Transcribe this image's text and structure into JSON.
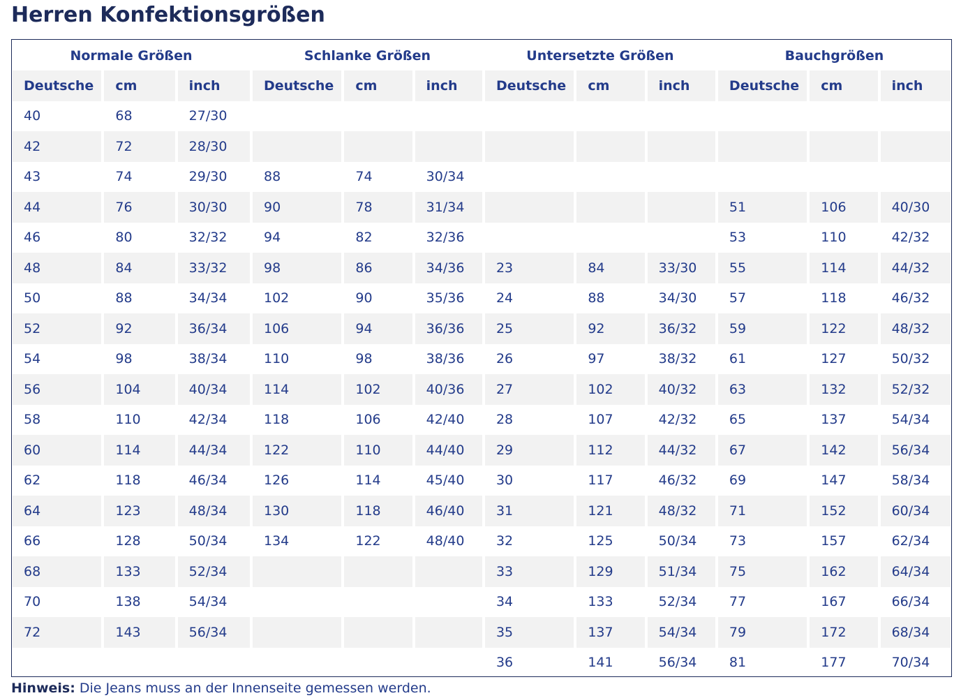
{
  "title": "Herren Konfektionsgrößen",
  "groups": [
    "Normale Größen",
    "Schlanke Größen",
    "Untersetzte Größen",
    "Bauchgrößen"
  ],
  "columns": [
    "Deutsche",
    "cm",
    "inch",
    "Deutsche",
    "cm",
    "inch",
    "Deutsche",
    "cm",
    "inch",
    "Deutsche",
    "cm",
    "inch"
  ],
  "rows": [
    [
      "40",
      "68",
      "27/30",
      "",
      "",
      "",
      "",
      "",
      "",
      "",
      "",
      ""
    ],
    [
      "42",
      "72",
      "28/30",
      "",
      "",
      "",
      "",
      "",
      "",
      "",
      "",
      ""
    ],
    [
      "43",
      "74",
      "29/30",
      "88",
      "74",
      "30/34",
      "",
      "",
      "",
      "",
      "",
      ""
    ],
    [
      "44",
      "76",
      "30/30",
      "90",
      "78",
      "31/34",
      "",
      "",
      "",
      "51",
      "106",
      "40/30"
    ],
    [
      "46",
      "80",
      "32/32",
      "94",
      "82",
      "32/36",
      "",
      "",
      "",
      "53",
      "110",
      "42/32"
    ],
    [
      "48",
      "84",
      "33/32",
      "98",
      "86",
      "34/36",
      "23",
      "84",
      "33/30",
      "55",
      "114",
      "44/32"
    ],
    [
      "50",
      "88",
      "34/34",
      "102",
      "90",
      "35/36",
      "24",
      "88",
      "34/30",
      "57",
      "118",
      "46/32"
    ],
    [
      "52",
      "92",
      "36/34",
      "106",
      "94",
      "36/36",
      "25",
      "92",
      "36/32",
      "59",
      "122",
      "48/32"
    ],
    [
      "54",
      "98",
      "38/34",
      "110",
      "98",
      "38/36",
      "26",
      "97",
      "38/32",
      "61",
      "127",
      "50/32"
    ],
    [
      "56",
      "104",
      "40/34",
      "114",
      "102",
      "40/36",
      "27",
      "102",
      "40/32",
      "63",
      "132",
      "52/32"
    ],
    [
      "58",
      "110",
      "42/34",
      "118",
      "106",
      "42/40",
      "28",
      "107",
      "42/32",
      "65",
      "137",
      "54/34"
    ],
    [
      "60",
      "114",
      "44/34",
      "122",
      "110",
      "44/40",
      "29",
      "112",
      "44/32",
      "67",
      "142",
      "56/34"
    ],
    [
      "62",
      "118",
      "46/34",
      "126",
      "114",
      "45/40",
      "30",
      "117",
      "46/32",
      "69",
      "147",
      "58/34"
    ],
    [
      "64",
      "123",
      "48/34",
      "130",
      "118",
      "46/40",
      "31",
      "121",
      "48/32",
      "71",
      "152",
      "60/34"
    ],
    [
      "66",
      "128",
      "50/34",
      "134",
      "122",
      "48/40",
      "32",
      "125",
      "50/34",
      "73",
      "157",
      "62/34"
    ],
    [
      "68",
      "133",
      "52/34",
      "",
      "",
      "",
      "33",
      "129",
      "51/34",
      "75",
      "162",
      "64/34"
    ],
    [
      "70",
      "138",
      "54/34",
      "",
      "",
      "",
      "34",
      "133",
      "52/34",
      "77",
      "167",
      "66/34"
    ],
    [
      "72",
      "143",
      "56/34",
      "",
      "",
      "",
      "35",
      "137",
      "54/34",
      "79",
      "172",
      "68/34"
    ],
    [
      "",
      "",
      "",
      "",
      "",
      "",
      "36",
      "141",
      "56/34",
      "81",
      "177",
      "70/34"
    ]
  ],
  "note": {
    "label": "Hinweis:",
    "text": "Die Jeans muss an der Innenseite gemessen werden."
  }
}
